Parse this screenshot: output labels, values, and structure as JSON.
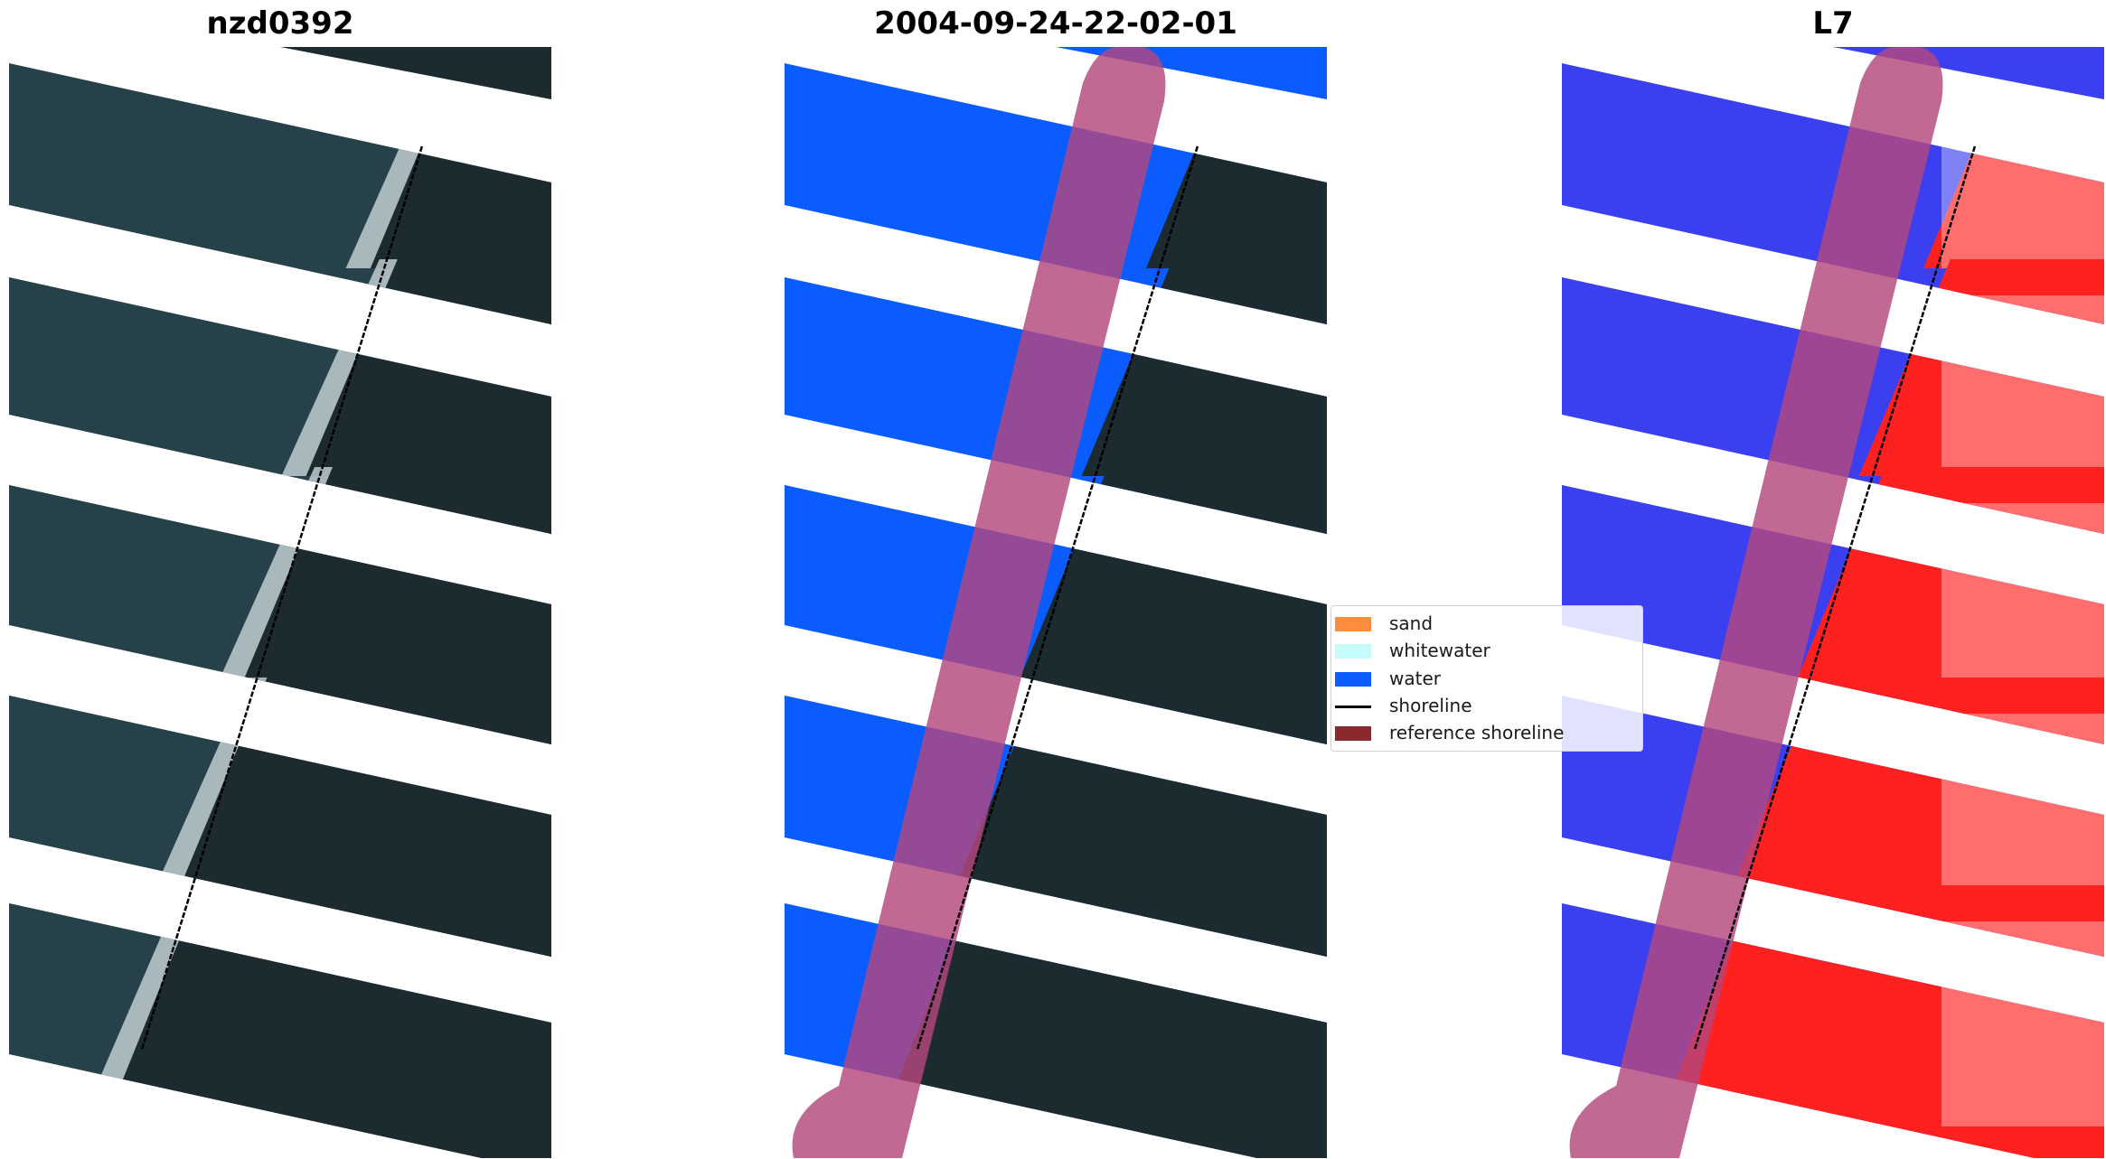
{
  "panels": [
    {
      "title": "nzd0392",
      "kind": "rgb"
    },
    {
      "title": "2004-09-24-22-02-01",
      "kind": "classified"
    },
    {
      "title": "L7",
      "kind": "index"
    }
  ],
  "legend": {
    "items": [
      {
        "label": "sand",
        "color": "#fd8d3c",
        "type": "patch"
      },
      {
        "label": "whitewater",
        "color": "#c6fbfb",
        "type": "patch"
      },
      {
        "label": "water",
        "color": "#0a5cff",
        "type": "patch"
      },
      {
        "label": "shoreline",
        "color": "#000000",
        "type": "line"
      },
      {
        "label": "reference shoreline",
        "color": "#8b2a2e",
        "type": "patch"
      }
    ]
  },
  "colors": {
    "ocean_rgb": "#27414a",
    "land_rgb": "#1c2b30",
    "surf": "#c9d6d8",
    "water_class": "#0a5cff",
    "index_water": "#3a3ff0",
    "index_land": "#ff2020",
    "reference_band": "#b4477e"
  }
}
